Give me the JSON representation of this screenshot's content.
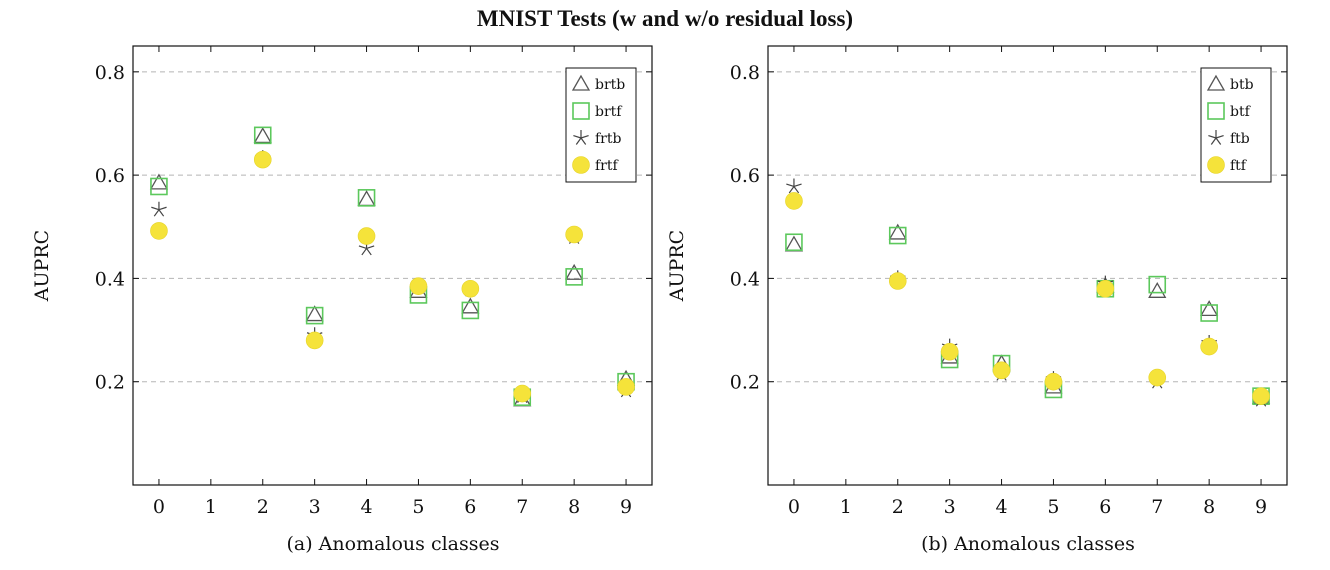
{
  "title": "MNIST Tests (w and w/o residual loss)",
  "chart_data": [
    {
      "type": "scatter",
      "ylabel": "AUPRC",
      "xlabel": "(a) Anomalous classes",
      "xticks": [
        "0",
        "1",
        "2",
        "3",
        "4",
        "5",
        "6",
        "7",
        "8",
        "9"
      ],
      "yticks": [
        "0.2",
        "0.4",
        "0.6",
        "0.8"
      ],
      "ylim": [
        0.0,
        0.85
      ],
      "grid": "horizontal dashed",
      "legend_position": "top-right",
      "series": [
        {
          "name": "brtb",
          "marker": "triangle",
          "color": "#555555",
          "points": [
            [
              0,
              0.585
            ],
            [
              2,
              0.675
            ],
            [
              3,
              0.33
            ],
            [
              4,
              0.553
            ],
            [
              5,
              0.375
            ],
            [
              6,
              0.345
            ],
            [
              7,
              0.165
            ],
            [
              8,
              0.41
            ],
            [
              9,
              0.205
            ]
          ]
        },
        {
          "name": "brtf",
          "marker": "square",
          "color": "#5cc85c",
          "points": [
            [
              0,
              0.578
            ],
            [
              2,
              0.677
            ],
            [
              3,
              0.328
            ],
            [
              4,
              0.556
            ],
            [
              5,
              0.368
            ],
            [
              6,
              0.338
            ],
            [
              7,
              0.17
            ],
            [
              8,
              0.403
            ],
            [
              9,
              0.2
            ]
          ]
        },
        {
          "name": "frtb",
          "marker": "star",
          "color": "#444444",
          "points": [
            [
              0,
              0.533
            ],
            [
              2,
              0.633
            ],
            [
              3,
              0.29
            ],
            [
              4,
              0.458
            ],
            [
              5,
              0.385
            ],
            [
              6,
              0.378
            ],
            [
              7,
              0.172
            ],
            [
              8,
              0.48
            ],
            [
              9,
              0.183
            ]
          ]
        },
        {
          "name": "frtf",
          "marker": "circle",
          "color": "#f5e33a",
          "points": [
            [
              0,
              0.492
            ],
            [
              2,
              0.63
            ],
            [
              3,
              0.28
            ],
            [
              4,
              0.482
            ],
            [
              5,
              0.385
            ],
            [
              6,
              0.38
            ],
            [
              7,
              0.177
            ],
            [
              8,
              0.485
            ],
            [
              9,
              0.19
            ]
          ]
        }
      ]
    },
    {
      "type": "scatter",
      "ylabel": "AUPRC",
      "xlabel": "(b) Anomalous classes",
      "xticks": [
        "0",
        "1",
        "2",
        "3",
        "4",
        "5",
        "6",
        "7",
        "8",
        "9"
      ],
      "yticks": [
        "0.2",
        "0.4",
        "0.6",
        "0.8"
      ],
      "ylim": [
        0.0,
        0.85
      ],
      "grid": "horizontal dashed",
      "legend_position": "top-right",
      "series": [
        {
          "name": "btb",
          "marker": "triangle",
          "color": "#555555",
          "points": [
            [
              0,
              0.465
            ],
            [
              2,
              0.488
            ],
            [
              3,
              0.248
            ],
            [
              4,
              0.235
            ],
            [
              5,
              0.19
            ],
            [
              6,
              0.385
            ],
            [
              7,
              0.375
            ],
            [
              8,
              0.34
            ],
            [
              9,
              0.17
            ]
          ]
        },
        {
          "name": "btf",
          "marker": "square",
          "color": "#5cc85c",
          "points": [
            [
              0,
              0.47
            ],
            [
              2,
              0.483
            ],
            [
              3,
              0.243
            ],
            [
              4,
              0.235
            ],
            [
              5,
              0.185
            ],
            [
              6,
              0.38
            ],
            [
              7,
              0.388
            ],
            [
              8,
              0.333
            ],
            [
              9,
              0.172
            ]
          ]
        },
        {
          "name": "ftb",
          "marker": "star",
          "color": "#444444",
          "points": [
            [
              0,
              0.578
            ],
            [
              2,
              0.4
            ],
            [
              3,
              0.268
            ],
            [
              4,
              0.215
            ],
            [
              5,
              0.205
            ],
            [
              6,
              0.39
            ],
            [
              7,
              0.2
            ],
            [
              8,
              0.275
            ],
            [
              9,
              0.165
            ]
          ]
        },
        {
          "name": "ftf",
          "marker": "circle",
          "color": "#f5e33a",
          "points": [
            [
              0,
              0.55
            ],
            [
              2,
              0.395
            ],
            [
              3,
              0.258
            ],
            [
              4,
              0.222
            ],
            [
              5,
              0.2
            ],
            [
              6,
              0.38
            ],
            [
              7,
              0.208
            ],
            [
              8,
              0.268
            ],
            [
              9,
              0.172
            ]
          ]
        }
      ]
    }
  ]
}
